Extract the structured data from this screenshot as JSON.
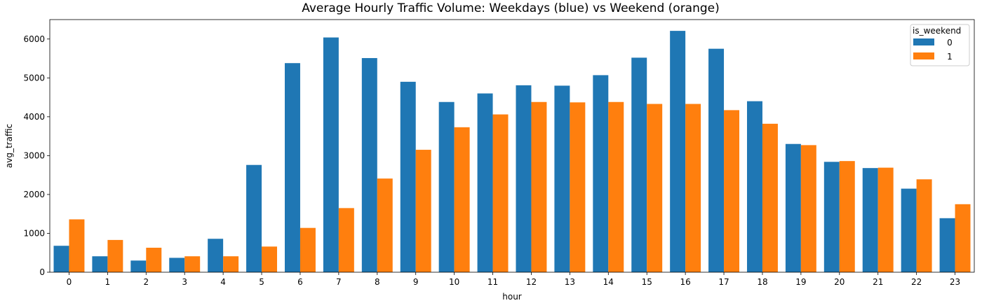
{
  "chart_data": {
    "type": "bar",
    "title": "Average Hourly Traffic Volume: Weekdays (blue) vs Weekend (orange)",
    "xlabel": "hour",
    "ylabel": "avg_traffic",
    "categories": [
      "0",
      "1",
      "2",
      "3",
      "4",
      "5",
      "6",
      "7",
      "8",
      "9",
      "10",
      "11",
      "12",
      "13",
      "14",
      "15",
      "16",
      "17",
      "18",
      "19",
      "20",
      "21",
      "22",
      "23"
    ],
    "ylim": [
      0,
      6500
    ],
    "yticks": [
      0,
      1000,
      2000,
      3000,
      4000,
      5000,
      6000
    ],
    "grid": false,
    "legend": {
      "title": "is_weekend",
      "placement": "top-right"
    },
    "series": [
      {
        "name": "0",
        "color": "#1f77b4",
        "values": [
          680,
          410,
          300,
          370,
          860,
          2760,
          5380,
          6040,
          5510,
          4900,
          4380,
          4600,
          4810,
          4800,
          5070,
          5520,
          6210,
          5750,
          4400,
          3300,
          2840,
          2680,
          2150,
          1390
        ]
      },
      {
        "name": "1",
        "color": "#ff7f0e",
        "values": [
          1360,
          830,
          630,
          410,
          410,
          660,
          1140,
          1650,
          2410,
          3150,
          3730,
          4060,
          4380,
          4370,
          4380,
          4330,
          4330,
          4170,
          3820,
          3270,
          2860,
          2690,
          2390,
          1750
        ]
      }
    ]
  }
}
